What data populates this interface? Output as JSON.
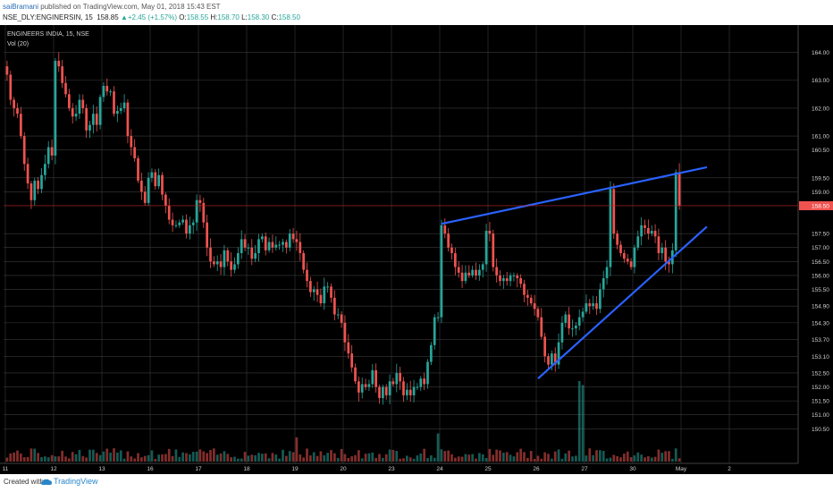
{
  "header": {
    "author": "saiBramani",
    "published_text": "published on TradingView.com, May 01, 2018 15:43 EST",
    "symbol": "NSE_DLY:ENGINERSIN, 15",
    "last": "158.85",
    "change": "+2.45 (+1.57%)",
    "open_label": "O:",
    "open": "158.55",
    "high_label": "H:",
    "high": "158.70",
    "low_label": "L:",
    "low": "158.30",
    "close_label": "C:",
    "close": "158.50"
  },
  "legend": {
    "title": "ENGINEERS INDIA, 15, NSE",
    "volume": "Vol (20)"
  },
  "footer": {
    "created_with": "Created with",
    "brand": "TradingView"
  },
  "colors": {
    "background": "#000000",
    "grid": "#3a3a3a",
    "up": "#26a69a",
    "down": "#ef5350",
    "trendline": "#2962ff",
    "price_line": "#c62828",
    "price_tag": "#ef5350",
    "volume_ma": "#ffcc80"
  },
  "chart_data": {
    "type": "candlestick",
    "title": "ENGINEERS INDIA, 15, NSE",
    "price_tick_labels": [
      "164.00",
      "163.00",
      "162.00",
      "161.00",
      "160.50",
      "159.50",
      "159.00",
      "157.50",
      "157.00",
      "156.50",
      "156.00",
      "155.50",
      "154.90",
      "154.30",
      "153.70",
      "153.10",
      "152.50",
      "152.00",
      "151.50",
      "151.00",
      "150.50"
    ],
    "price_tick_values": [
      164.0,
      163.0,
      162.0,
      161.0,
      160.5,
      159.5,
      159.0,
      157.5,
      157.0,
      156.5,
      156.0,
      155.5,
      154.9,
      154.3,
      153.7,
      153.1,
      152.5,
      152.0,
      151.5,
      151.0,
      150.5
    ],
    "current_price_label": "158.50",
    "current_price": 158.5,
    "x_tick_labels": [
      "11",
      "12",
      "13",
      "16",
      "17",
      "18",
      "19",
      "20",
      "23",
      "24",
      "25",
      "26",
      "27",
      "30",
      "May",
      "2"
    ],
    "x_tick_bars": [
      0,
      14,
      28,
      42,
      56,
      70,
      84,
      98,
      112,
      126,
      140,
      154,
      168,
      182,
      196,
      210
    ],
    "ylim": [
      149.9,
      164.5
    ],
    "session_closes": [
      [
        163.2,
        162.3,
        162.0,
        161.8,
        161.0,
        160.0,
        159.3,
        158.7,
        159.4,
        159.1,
        159.6,
        160.0,
        160.6,
        160.3
      ],
      [
        163.7,
        163.5,
        162.9,
        162.5,
        162.0,
        161.7,
        161.8,
        162.3,
        162.0,
        161.2,
        161.4,
        161.8,
        161.4,
        162.4
      ],
      [
        162.8,
        162.6,
        162.6,
        161.8,
        161.9,
        162.0,
        162.2,
        161.0,
        160.6,
        160.2,
        159.4,
        159.0,
        158.6,
        159.5
      ],
      [
        159.7,
        159.2,
        159.6,
        158.9,
        158.5,
        158.0,
        157.8,
        157.8,
        157.9,
        158.0,
        157.5,
        157.8,
        157.9,
        158.7
      ],
      [
        158.6,
        157.9,
        157.0,
        156.5,
        156.4,
        156.5,
        156.3,
        156.9,
        156.5,
        156.2,
        156.4,
        156.8,
        157.3,
        157.0
      ],
      [
        157.0,
        156.6,
        156.8,
        157.3,
        157.4,
        156.9,
        157.2,
        157.0,
        157.1,
        157.1,
        157.2,
        157.0,
        157.5,
        157.3
      ],
      [
        157.2,
        156.8,
        156.2,
        155.8,
        155.4,
        155.5,
        155.3,
        155.0,
        155.6,
        155.6,
        155.2,
        154.6,
        154.6,
        154.3
      ],
      [
        153.6,
        153.2,
        152.7,
        152.2,
        151.8,
        152.1,
        152.0,
        152.1,
        152.6,
        152.0,
        151.6,
        152.0,
        151.7,
        152.2
      ],
      [
        152.1,
        152.5,
        152.2,
        151.7,
        151.9,
        151.7,
        152.0,
        152.0,
        152.3,
        152.1,
        152.9,
        153.5,
        154.5,
        154.5
      ],
      [
        157.8,
        157.5,
        157.0,
        156.8,
        156.3,
        156.1,
        155.8,
        156.1,
        156.0,
        156.2,
        156.0,
        156.2,
        156.4,
        157.6
      ],
      [
        157.5,
        156.3,
        156.0,
        155.8,
        155.9,
        155.8,
        156.0,
        156.0,
        155.9,
        155.7,
        155.3,
        155.2,
        155.0,
        154.8
      ],
      [
        154.5,
        153.8,
        153.1,
        152.8,
        153.2,
        152.8,
        153.6,
        154.3,
        154.6,
        154.1,
        154.1,
        154.2,
        154.5,
        154.7
      ],
      [
        155.0,
        154.9,
        155.0,
        154.8,
        155.5,
        155.9,
        156.3,
        159.1,
        157.5,
        157.1,
        156.8,
        156.6,
        156.5,
        156.3
      ],
      [
        157.0,
        157.4,
        157.8,
        157.7,
        157.5,
        157.6,
        157.4,
        156.8,
        157.0,
        156.5,
        156.4,
        156.9,
        159.7,
        158.5
      ]
    ],
    "trendlines": [
      {
        "from_bar": 126,
        "from_price": 157.85,
        "to_bar": 203,
        "to_price": 159.88
      },
      {
        "from_bar": 154,
        "from_price": 152.3,
        "to_bar": 203,
        "to_price": 157.75
      }
    ],
    "volume": {
      "label": "Vol (20)",
      "spikes": [
        {
          "bar": 166,
          "relative": 1.0
        },
        {
          "bar": 167,
          "relative": 0.95
        },
        {
          "bar": 125,
          "relative": 0.35
        },
        {
          "bar": 84,
          "relative": 0.3
        }
      ]
    }
  }
}
